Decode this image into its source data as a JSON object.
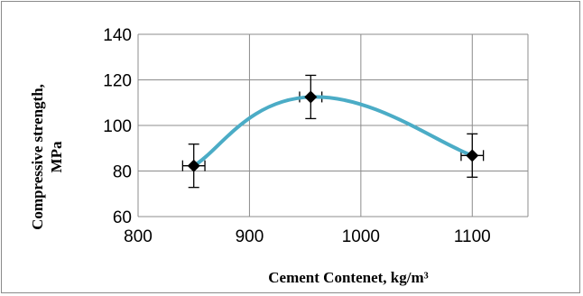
{
  "chart_data": {
    "type": "line",
    "title": "",
    "xlabel": "Cement Contenet, kg/m³",
    "ylabel_line1": "Compressive strength,",
    "ylabel_line2": "MPa",
    "xlim": [
      800,
      1150
    ],
    "ylim": [
      60,
      140
    ],
    "x_ticks": [
      800,
      900,
      1000,
      1100
    ],
    "y_ticks": [
      60,
      80,
      100,
      120,
      140
    ],
    "grid": true,
    "legend": "none",
    "series": [
      {
        "x": [
          850,
          955,
          1100
        ],
        "y": [
          82.3,
          112.5,
          86.8
        ],
        "y_error": [
          9.5,
          9.5,
          9.5
        ],
        "x_error": [
          10,
          10,
          10
        ],
        "line_color": "#4bacc6",
        "marker": "diamond",
        "marker_color": "#000000"
      }
    ]
  }
}
